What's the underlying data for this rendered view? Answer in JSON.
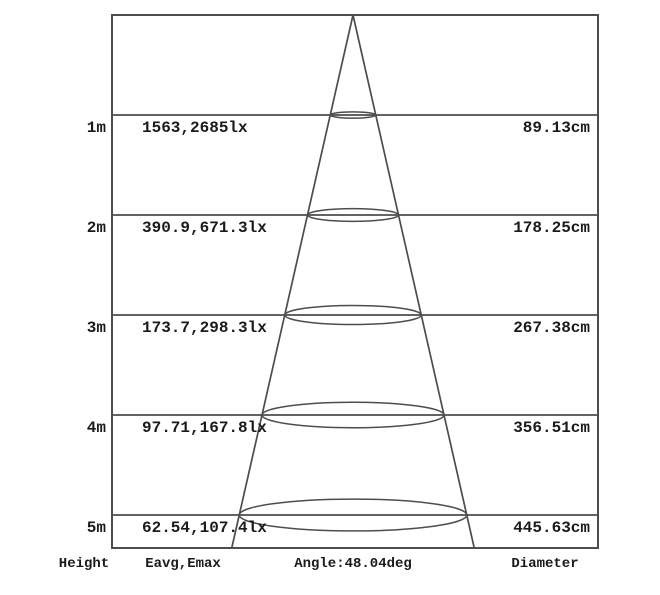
{
  "colors": {
    "line": "#4d4d4d",
    "text": "#1a1a1a",
    "background": "#ffffff"
  },
  "footer": {
    "height_label": "Height",
    "eavg_label": "Eavg,Emax",
    "angle_label": "Angle:48.04deg",
    "diameter_label": "Diameter"
  },
  "chart_data": {
    "type": "table",
    "title": "Light beam cone diagram",
    "beam_angle_deg": 48.04,
    "beam_angle_label": "Angle:48.04deg",
    "columns": [
      "Height",
      "Eavg,Emax",
      "Angle:48.04deg",
      "Diameter"
    ],
    "heights_m": [
      1,
      2,
      3,
      4,
      5
    ],
    "series": [
      {
        "name": "Eavg (lx)",
        "values": [
          1563,
          390.9,
          173.7,
          97.71,
          62.54
        ]
      },
      {
        "name": "Emax (lx)",
        "values": [
          2685,
          671.3,
          298.3,
          167.8,
          107.4
        ]
      },
      {
        "name": "Diameter (cm)",
        "values": [
          89.13,
          178.25,
          267.38,
          356.51,
          445.63
        ]
      }
    ],
    "rows": [
      {
        "height": "1m",
        "eavg_emax": "1563,2685lx",
        "diameter": "89.13cm"
      },
      {
        "height": "2m",
        "eavg_emax": "390.9,671.3lx",
        "diameter": "178.25cm"
      },
      {
        "height": "3m",
        "eavg_emax": "173.7,298.3lx",
        "diameter": "267.38cm"
      },
      {
        "height": "4m",
        "eavg_emax": "97.71,167.8lx",
        "diameter": "356.51cm"
      },
      {
        "height": "5m",
        "eavg_emax": "62.54,107.4lx",
        "diameter": "445.63cm"
      }
    ]
  }
}
